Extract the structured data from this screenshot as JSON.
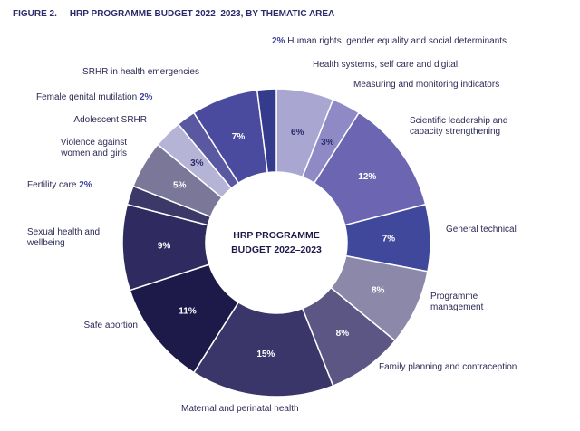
{
  "chart_data": {
    "type": "donut",
    "figure_label": "FIGURE 2.",
    "title": "HRP PROGRAMME BUDGET 2022–2023, BY THEMATIC AREA",
    "center_text": [
      "HRP PROGRAMME",
      "BUDGET 2022–2023"
    ],
    "categories": [
      "Health systems, self care and digital",
      "Measuring and monitoring indicators",
      "Scientific leadership and capacity strengthening",
      "General technical",
      "Programme management",
      "Family planning and contraception",
      "Maternal and perinatal health",
      "Safe abortion",
      "Sexual health and wellbeing",
      "Fertility care",
      "Violence against women and girls",
      "Adolescent SRHR",
      "Female genital mutilation",
      "SRHR in health emergencies",
      "Human rights, gender equality and social determinants"
    ],
    "values": [
      6,
      3,
      12,
      7,
      8,
      8,
      15,
      11,
      9,
      2,
      5,
      3,
      2,
      7,
      2
    ],
    "value_labels": [
      "6%",
      "3%",
      "12%",
      "7%",
      "8%",
      "8%",
      "15%",
      "11%",
      "9%",
      "2%",
      "5%",
      "3%",
      "2%",
      "7%",
      "2%"
    ],
    "colors": [
      "#aaa6d2",
      "#8f8ac6",
      "#6c66b2",
      "#40489c",
      "#8c88aa",
      "#5c5684",
      "#3b366a",
      "#1d1a4a",
      "#2f2b60",
      "#3c3968",
      "#7b7799",
      "#b6b4d6",
      "#5a58a0",
      "#4a4b9e",
      "#343b8c"
    ]
  }
}
